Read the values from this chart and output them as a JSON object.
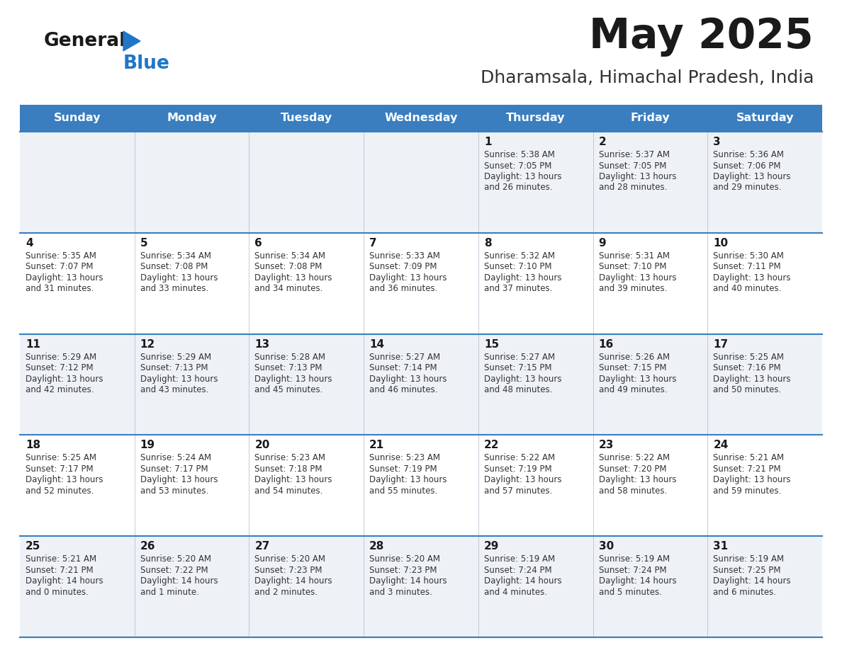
{
  "title": "May 2025",
  "subtitle": "Dharamsala, Himachal Pradesh, India",
  "days_of_week": [
    "Sunday",
    "Monday",
    "Tuesday",
    "Wednesday",
    "Thursday",
    "Friday",
    "Saturday"
  ],
  "header_bg": "#3a7ebf",
  "header_text": "#ffffff",
  "row_bg_even": "#eef2f7",
  "row_bg_odd": "#ffffff",
  "separator_color": "#3a7ebf",
  "cell_border_color": "#b0b8c8",
  "text_color": "#333333",
  "title_color": "#1a1a1a",
  "subtitle_color": "#333333",
  "num_color": "#1a1a1a",
  "logo_general_color": "#1a1a1a",
  "logo_blue_color": "#2176c7",
  "logo_triangle_color": "#2176c7",
  "calendar": [
    [
      {
        "day": null,
        "info": ""
      },
      {
        "day": null,
        "info": ""
      },
      {
        "day": null,
        "info": ""
      },
      {
        "day": null,
        "info": ""
      },
      {
        "day": 1,
        "sunrise": "5:38 AM",
        "sunset": "7:05 PM",
        "daylight": "13 hours",
        "daylight2": "and 26 minutes."
      },
      {
        "day": 2,
        "sunrise": "5:37 AM",
        "sunset": "7:05 PM",
        "daylight": "13 hours",
        "daylight2": "and 28 minutes."
      },
      {
        "day": 3,
        "sunrise": "5:36 AM",
        "sunset": "7:06 PM",
        "daylight": "13 hours",
        "daylight2": "and 29 minutes."
      }
    ],
    [
      {
        "day": 4,
        "sunrise": "5:35 AM",
        "sunset": "7:07 PM",
        "daylight": "13 hours",
        "daylight2": "and 31 minutes."
      },
      {
        "day": 5,
        "sunrise": "5:34 AM",
        "sunset": "7:08 PM",
        "daylight": "13 hours",
        "daylight2": "and 33 minutes."
      },
      {
        "day": 6,
        "sunrise": "5:34 AM",
        "sunset": "7:08 PM",
        "daylight": "13 hours",
        "daylight2": "and 34 minutes."
      },
      {
        "day": 7,
        "sunrise": "5:33 AM",
        "sunset": "7:09 PM",
        "daylight": "13 hours",
        "daylight2": "and 36 minutes."
      },
      {
        "day": 8,
        "sunrise": "5:32 AM",
        "sunset": "7:10 PM",
        "daylight": "13 hours",
        "daylight2": "and 37 minutes."
      },
      {
        "day": 9,
        "sunrise": "5:31 AM",
        "sunset": "7:10 PM",
        "daylight": "13 hours",
        "daylight2": "and 39 minutes."
      },
      {
        "day": 10,
        "sunrise": "5:30 AM",
        "sunset": "7:11 PM",
        "daylight": "13 hours",
        "daylight2": "and 40 minutes."
      }
    ],
    [
      {
        "day": 11,
        "sunrise": "5:29 AM",
        "sunset": "7:12 PM",
        "daylight": "13 hours",
        "daylight2": "and 42 minutes."
      },
      {
        "day": 12,
        "sunrise": "5:29 AM",
        "sunset": "7:13 PM",
        "daylight": "13 hours",
        "daylight2": "and 43 minutes."
      },
      {
        "day": 13,
        "sunrise": "5:28 AM",
        "sunset": "7:13 PM",
        "daylight": "13 hours",
        "daylight2": "and 45 minutes."
      },
      {
        "day": 14,
        "sunrise": "5:27 AM",
        "sunset": "7:14 PM",
        "daylight": "13 hours",
        "daylight2": "and 46 minutes."
      },
      {
        "day": 15,
        "sunrise": "5:27 AM",
        "sunset": "7:15 PM",
        "daylight": "13 hours",
        "daylight2": "and 48 minutes."
      },
      {
        "day": 16,
        "sunrise": "5:26 AM",
        "sunset": "7:15 PM",
        "daylight": "13 hours",
        "daylight2": "and 49 minutes."
      },
      {
        "day": 17,
        "sunrise": "5:25 AM",
        "sunset": "7:16 PM",
        "daylight": "13 hours",
        "daylight2": "and 50 minutes."
      }
    ],
    [
      {
        "day": 18,
        "sunrise": "5:25 AM",
        "sunset": "7:17 PM",
        "daylight": "13 hours",
        "daylight2": "and 52 minutes."
      },
      {
        "day": 19,
        "sunrise": "5:24 AM",
        "sunset": "7:17 PM",
        "daylight": "13 hours",
        "daylight2": "and 53 minutes."
      },
      {
        "day": 20,
        "sunrise": "5:23 AM",
        "sunset": "7:18 PM",
        "daylight": "13 hours",
        "daylight2": "and 54 minutes."
      },
      {
        "day": 21,
        "sunrise": "5:23 AM",
        "sunset": "7:19 PM",
        "daylight": "13 hours",
        "daylight2": "and 55 minutes."
      },
      {
        "day": 22,
        "sunrise": "5:22 AM",
        "sunset": "7:19 PM",
        "daylight": "13 hours",
        "daylight2": "and 57 minutes."
      },
      {
        "day": 23,
        "sunrise": "5:22 AM",
        "sunset": "7:20 PM",
        "daylight": "13 hours",
        "daylight2": "and 58 minutes."
      },
      {
        "day": 24,
        "sunrise": "5:21 AM",
        "sunset": "7:21 PM",
        "daylight": "13 hours",
        "daylight2": "and 59 minutes."
      }
    ],
    [
      {
        "day": 25,
        "sunrise": "5:21 AM",
        "sunset": "7:21 PM",
        "daylight": "14 hours",
        "daylight2": "and 0 minutes."
      },
      {
        "day": 26,
        "sunrise": "5:20 AM",
        "sunset": "7:22 PM",
        "daylight": "14 hours",
        "daylight2": "and 1 minute."
      },
      {
        "day": 27,
        "sunrise": "5:20 AM",
        "sunset": "7:23 PM",
        "daylight": "14 hours",
        "daylight2": "and 2 minutes."
      },
      {
        "day": 28,
        "sunrise": "5:20 AM",
        "sunset": "7:23 PM",
        "daylight": "14 hours",
        "daylight2": "and 3 minutes."
      },
      {
        "day": 29,
        "sunrise": "5:19 AM",
        "sunset": "7:24 PM",
        "daylight": "14 hours",
        "daylight2": "and 4 minutes."
      },
      {
        "day": 30,
        "sunrise": "5:19 AM",
        "sunset": "7:24 PM",
        "daylight": "14 hours",
        "daylight2": "and 5 minutes."
      },
      {
        "day": 31,
        "sunrise": "5:19 AM",
        "sunset": "7:25 PM",
        "daylight": "14 hours",
        "daylight2": "and 6 minutes."
      }
    ]
  ]
}
